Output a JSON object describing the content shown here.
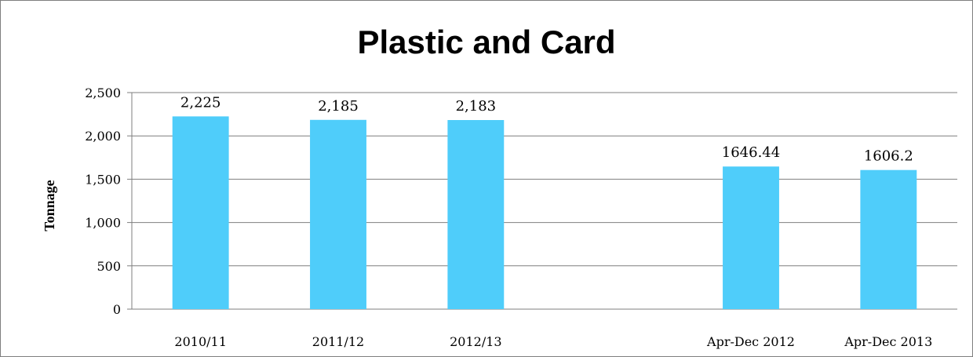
{
  "chart_data": {
    "type": "bar",
    "title": "Plastic and Card",
    "ylabel": "Tonnage",
    "xlabel": "",
    "categories": [
      "2010/11",
      "2011/12",
      "2012/13",
      "",
      "Apr-Dec 2012",
      "Apr-Dec 2013"
    ],
    "values": [
      2225,
      2185,
      2183,
      null,
      1646.44,
      1606.2
    ],
    "data_labels": [
      "2,225",
      "2,185",
      "2,183",
      "",
      "1646.44",
      "1606.2"
    ],
    "ylim": [
      0,
      2500
    ],
    "yticks": [
      0,
      500,
      1000,
      1500,
      2000,
      2500
    ],
    "ytick_labels": [
      "0",
      "500",
      "1,000",
      "1,500",
      "2,000",
      "2,500"
    ],
    "grid": true,
    "legend": "none",
    "bar_color": "#4fcdfa",
    "grid_color": "#7f7f7f"
  }
}
